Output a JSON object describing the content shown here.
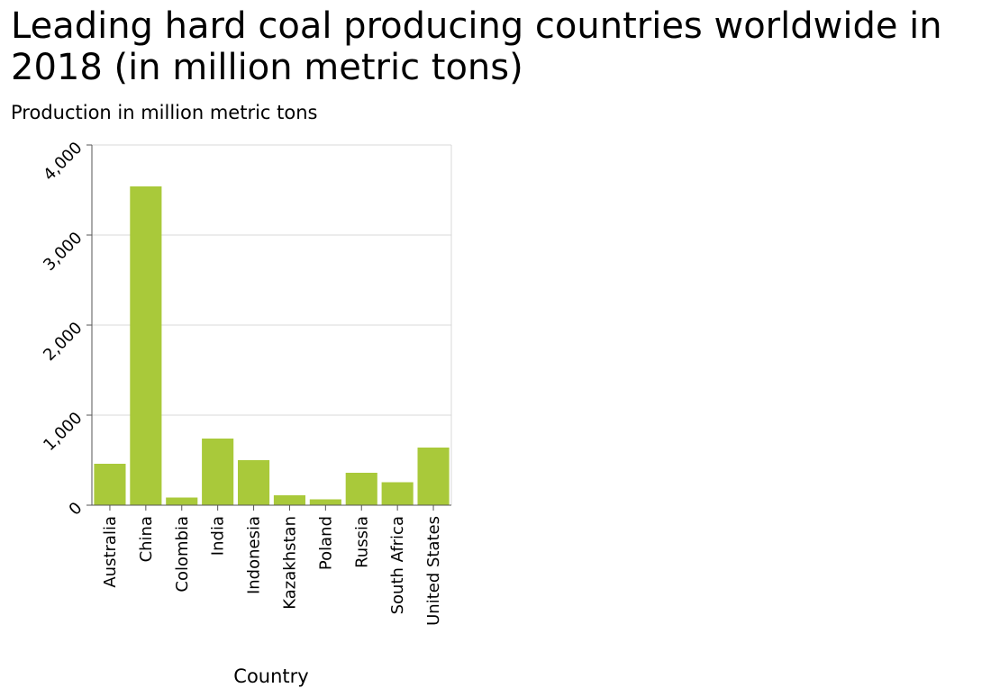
{
  "chart_data": {
    "type": "bar",
    "title": "Leading hard coal producing countries worldwide in 2018 (in million metric tons)",
    "ylabel": "Production in million metric tons",
    "xlabel": "Country",
    "categories": [
      "Australia",
      "China",
      "Colombia",
      "India",
      "Indonesia",
      "Kazakhstan",
      "Poland",
      "Russia",
      "South Africa",
      "United States"
    ],
    "values": [
      460,
      3540,
      85,
      740,
      500,
      110,
      65,
      360,
      255,
      640
    ],
    "ylim": [
      0,
      4000
    ],
    "yticks": [
      0,
      1000,
      2000,
      3000,
      4000
    ],
    "ytick_labels": [
      "0",
      "1,000",
      "2,000",
      "3,000",
      "4,000"
    ],
    "grid": true,
    "bar_color": "#a9c93a",
    "grid_color": "#d9d9d9",
    "axis_color": "#555555"
  }
}
